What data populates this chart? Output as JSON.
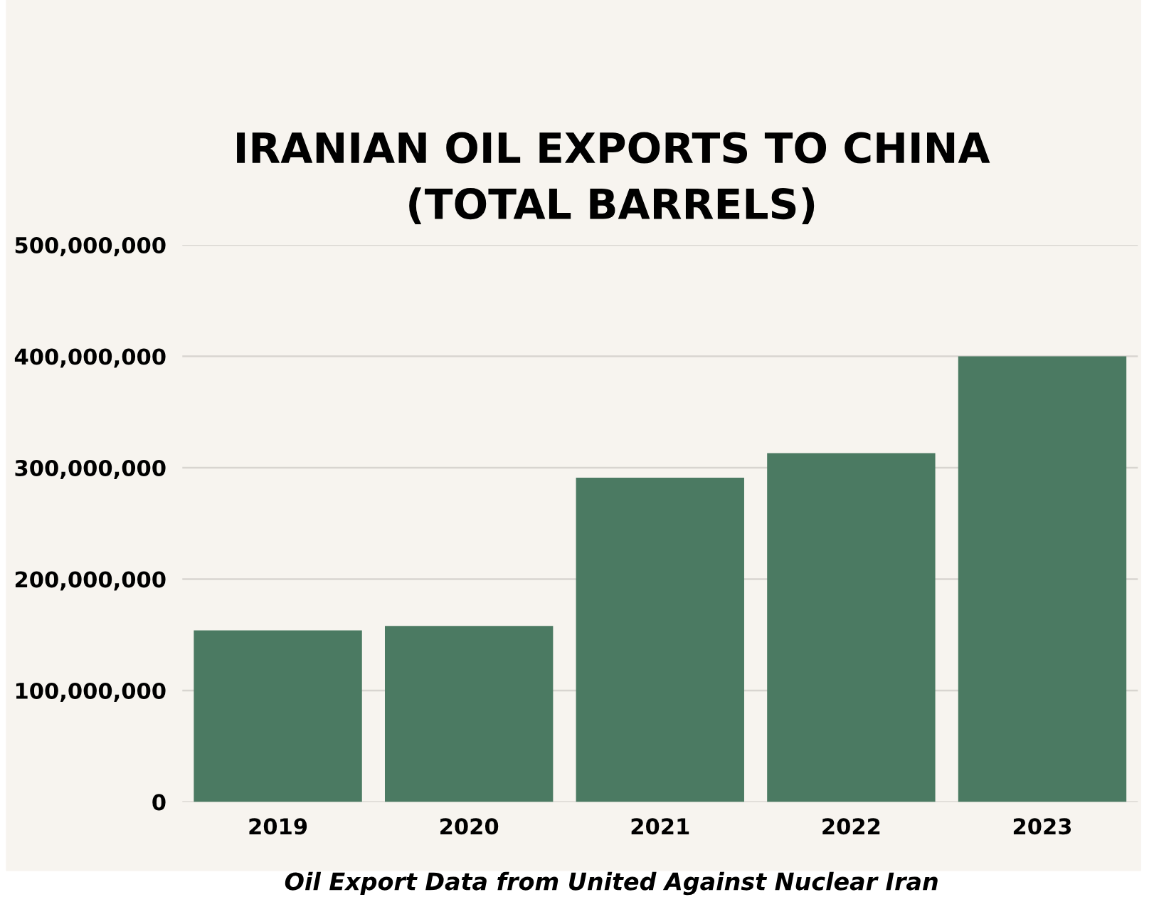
{
  "chart_data": {
    "type": "bar",
    "title": "IRANIAN OIL EXPORTS TO CHINA\n(TOTAL BARRELS)",
    "categories": [
      "2019",
      "2020",
      "2021",
      "2022",
      "2023"
    ],
    "values": [
      154000000,
      158000000,
      291000000,
      313000000,
      400000000
    ],
    "color": "#4b7a62",
    "ylim": [
      0,
      500000000
    ],
    "yticks": [
      {
        "value": 0,
        "label": "0"
      },
      {
        "value": 100000000,
        "label": "100,000,000"
      },
      {
        "value": 200000000,
        "label": "200,000,000"
      },
      {
        "value": 300000000,
        "label": "300,000,000"
      },
      {
        "value": 400000000,
        "label": "400,000,000"
      },
      {
        "value": 500000000,
        "label": "500,000,000"
      }
    ],
    "grid": "y",
    "annotations": [
      "Oil Export Data from United Against Nuclear Iran"
    ]
  }
}
